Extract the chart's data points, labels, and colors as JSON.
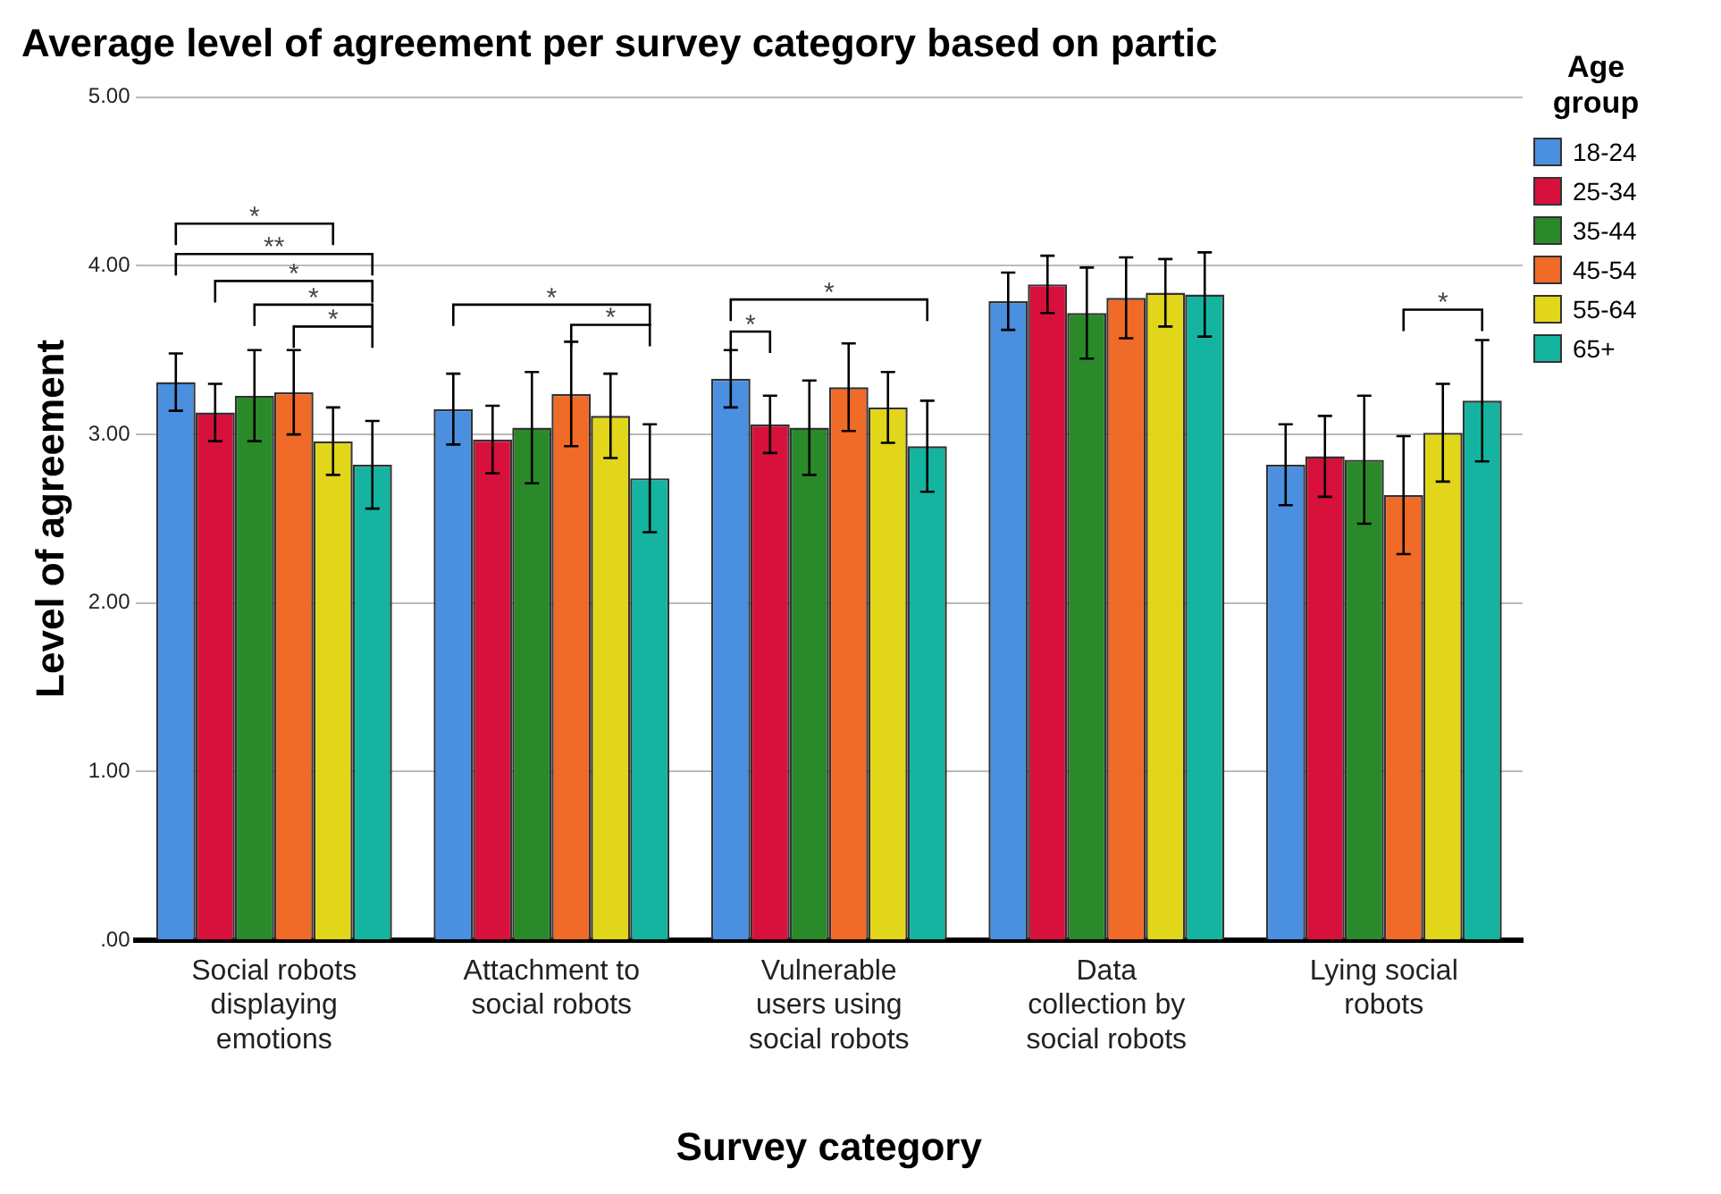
{
  "chart_data": {
    "type": "bar",
    "title": "Average level of agreement per survey category based on partic",
    "xlabel": "Survey category",
    "ylabel": "Level of agreement",
    "legend_title": "Age group",
    "legend": "right",
    "grid": "y",
    "categories": [
      "Social robots displaying emotions",
      "Attachment to social robots",
      "Vulnerable users using social robots",
      "Data collection by social robots",
      "Lying social robots"
    ],
    "ylim": [
      0,
      5
    ],
    "yticks": [
      {
        "value": 0,
        "label": ".00"
      },
      {
        "value": 1,
        "label": "1.00"
      },
      {
        "value": 2,
        "label": "2.00"
      },
      {
        "value": 3,
        "label": "3.00"
      },
      {
        "value": 4,
        "label": "4.00"
      },
      {
        "value": 5,
        "label": "5.00"
      }
    ],
    "series": [
      {
        "name": "18-24",
        "color": "#4a8fe0",
        "values": [
          3.31,
          3.15,
          3.33,
          3.79,
          2.82
        ],
        "errors": [
          0.17,
          0.21,
          0.17,
          0.17,
          0.24
        ]
      },
      {
        "name": "25-34",
        "color": "#d8103c",
        "values": [
          3.13,
          2.97,
          3.06,
          3.89,
          2.87
        ],
        "errors": [
          0.17,
          0.2,
          0.17,
          0.17,
          0.24
        ]
      },
      {
        "name": "35-44",
        "color": "#2a8a2a",
        "values": [
          3.23,
          3.04,
          3.04,
          3.72,
          2.85
        ],
        "errors": [
          0.27,
          0.33,
          0.28,
          0.27,
          0.38
        ]
      },
      {
        "name": "45-54",
        "color": "#f06a28",
        "values": [
          3.25,
          3.24,
          3.28,
          3.81,
          2.64
        ],
        "errors": [
          0.25,
          0.31,
          0.26,
          0.24,
          0.35
        ]
      },
      {
        "name": "55-64",
        "color": "#e2d61a",
        "values": [
          2.96,
          3.11,
          3.16,
          3.84,
          3.01
        ],
        "errors": [
          0.2,
          0.25,
          0.21,
          0.2,
          0.29
        ]
      },
      {
        "name": "65+",
        "color": "#14b4a0",
        "values": [
          2.82,
          2.74,
          2.93,
          3.83,
          3.2
        ],
        "errors": [
          0.26,
          0.32,
          0.27,
          0.25,
          0.36
        ]
      }
    ],
    "annotations": [
      "*",
      "**",
      "*",
      "*",
      "*",
      "*",
      "*",
      "*",
      "*",
      "*"
    ]
  }
}
